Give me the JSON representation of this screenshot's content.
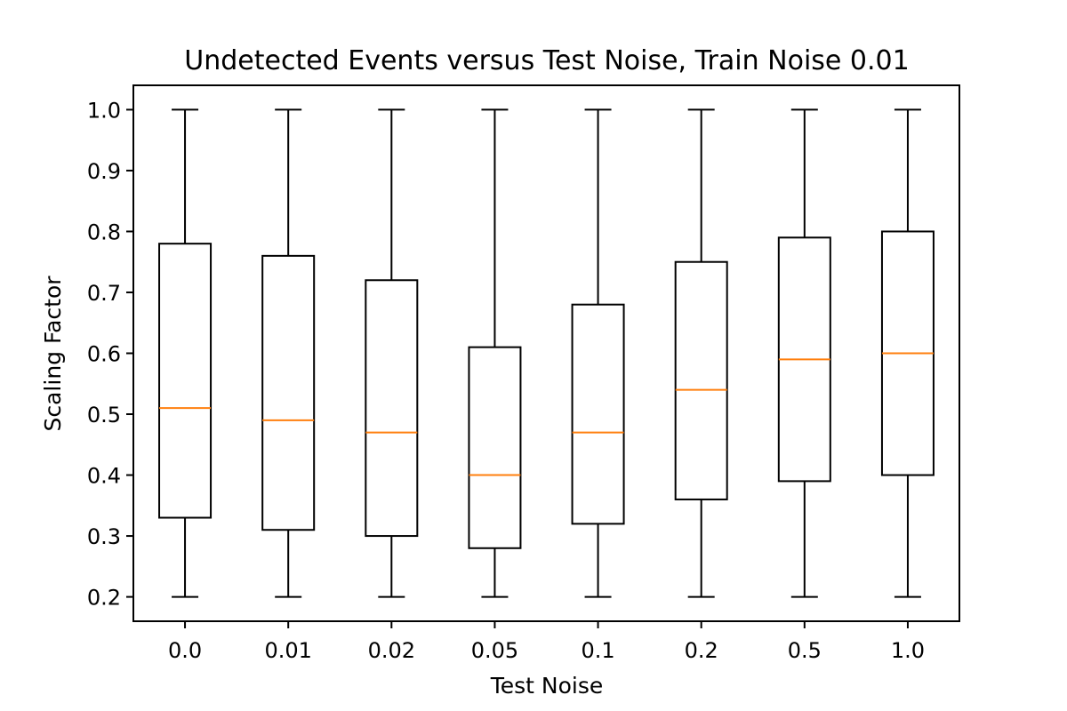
{
  "chart_data": {
    "type": "box",
    "title": "Undetected Events versus Test Noise, Train Noise 0.01",
    "xlabel": "Test Noise",
    "ylabel": "Scaling Factor",
    "categories": [
      "0.0",
      "0.01",
      "0.02",
      "0.05",
      "0.1",
      "0.2",
      "0.5",
      "1.0"
    ],
    "boxes": [
      {
        "category": "0.0",
        "whisker_low": 0.2,
        "q1": 0.33,
        "median": 0.51,
        "q3": 0.78,
        "whisker_high": 1.0
      },
      {
        "category": "0.01",
        "whisker_low": 0.2,
        "q1": 0.31,
        "median": 0.49,
        "q3": 0.76,
        "whisker_high": 1.0
      },
      {
        "category": "0.02",
        "whisker_low": 0.2,
        "q1": 0.3,
        "median": 0.47,
        "q3": 0.72,
        "whisker_high": 1.0
      },
      {
        "category": "0.05",
        "whisker_low": 0.2,
        "q1": 0.28,
        "median": 0.4,
        "q3": 0.61,
        "whisker_high": 1.0
      },
      {
        "category": "0.1",
        "whisker_low": 0.2,
        "q1": 0.32,
        "median": 0.47,
        "q3": 0.68,
        "whisker_high": 1.0
      },
      {
        "category": "0.2",
        "whisker_low": 0.2,
        "q1": 0.36,
        "median": 0.54,
        "q3": 0.75,
        "whisker_high": 1.0
      },
      {
        "category": "0.5",
        "whisker_low": 0.2,
        "q1": 0.39,
        "median": 0.59,
        "q3": 0.79,
        "whisker_high": 1.0
      },
      {
        "category": "1.0",
        "whisker_low": 0.2,
        "q1": 0.4,
        "median": 0.6,
        "q3": 0.8,
        "whisker_high": 1.0
      }
    ],
    "yticks": [
      "0.2",
      "0.3",
      "0.4",
      "0.5",
      "0.6",
      "0.7",
      "0.8",
      "0.9",
      "1.0"
    ],
    "ylim": [
      0.16,
      1.04
    ],
    "grid": false,
    "colors": {
      "box": "#000000",
      "median": "#ff7f0e"
    }
  }
}
